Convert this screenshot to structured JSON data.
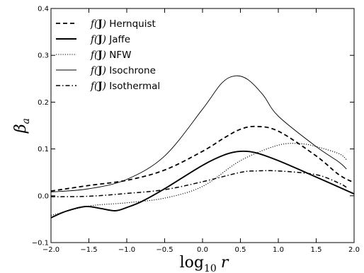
{
  "chart_data": {
    "type": "line",
    "xlabel": "log_10 r",
    "xlabel_parts": {
      "base": "log",
      "sub": "10",
      "var": "r"
    },
    "ylabel": "β_a",
    "ylabel_parts": {
      "sym": "β",
      "sub": "a"
    },
    "xlim": [
      -2.0,
      2.0
    ],
    "ylim": [
      -0.1,
      0.4
    ],
    "xticks": [
      -2.0,
      -1.5,
      -1.0,
      -0.5,
      0.0,
      0.5,
      1.0,
      1.5,
      2.0
    ],
    "xtick_labels": [
      "−2.0",
      "−1.5",
      "−1.0",
      "−0.5",
      "0.0",
      "0.5",
      "1.0",
      "1.5",
      "2.0"
    ],
    "yticks": [
      -0.1,
      0.0,
      0.1,
      0.2,
      0.3,
      0.4
    ],
    "ytick_labels": [
      "−0.1",
      "0.0",
      "0.1",
      "0.2",
      "0.3",
      "0.4"
    ],
    "grid": false,
    "legend_position": "top-left",
    "legend_prefix": "f(J)",
    "series": [
      {
        "name": "Hernquist",
        "style": "dashed",
        "color": "#000000",
        "x": [
          -2.0,
          -1.5,
          -1.0,
          -0.5,
          0.0,
          0.3,
          0.5,
          0.7,
          1.0,
          1.5,
          1.8,
          2.0
        ],
        "y": [
          0.01,
          0.022,
          0.033,
          0.055,
          0.095,
          0.125,
          0.142,
          0.148,
          0.138,
          0.085,
          0.045,
          0.028
        ]
      },
      {
        "name": "Jaffe",
        "style": "solid-thick",
        "color": "#000000",
        "x": [
          -2.0,
          -1.8,
          -1.55,
          -1.35,
          -1.15,
          -1.0,
          -0.8,
          -0.5,
          0.0,
          0.3,
          0.5,
          0.7,
          1.0,
          1.5,
          2.0
        ],
        "y": [
          -0.047,
          -0.033,
          -0.023,
          -0.027,
          -0.032,
          -0.025,
          -0.012,
          0.015,
          0.065,
          0.088,
          0.095,
          0.092,
          0.075,
          0.04,
          0.004
        ]
      },
      {
        "name": "NFW",
        "style": "dotted",
        "color": "#000000",
        "x": [
          -2.0,
          -1.5,
          -1.0,
          -0.5,
          0.0,
          0.5,
          1.0,
          1.3,
          1.5,
          1.8,
          1.9
        ],
        "y": [
          -0.042,
          -0.022,
          -0.015,
          -0.005,
          0.02,
          0.075,
          0.108,
          0.111,
          0.105,
          0.09,
          0.077
        ]
      },
      {
        "name": "Isochrone",
        "style": "solid-thin",
        "color": "#000000",
        "x": [
          -2.0,
          -1.5,
          -1.0,
          -0.5,
          0.0,
          0.25,
          0.43,
          0.6,
          0.8,
          1.0,
          1.5,
          1.8,
          1.9
        ],
        "y": [
          0.008,
          0.015,
          0.035,
          0.085,
          0.185,
          0.24,
          0.256,
          0.248,
          0.215,
          0.17,
          0.105,
          0.072,
          0.057
        ]
      },
      {
        "name": "Isothermal",
        "style": "dashdot",
        "color": "#000000",
        "x": [
          -2.0,
          -1.5,
          -1.0,
          -0.5,
          0.0,
          0.5,
          0.7,
          1.0,
          1.5,
          1.8,
          1.9
        ],
        "y": [
          -0.002,
          -0.001,
          0.005,
          0.013,
          0.03,
          0.05,
          0.053,
          0.053,
          0.045,
          0.027,
          0.018
        ]
      }
    ]
  }
}
